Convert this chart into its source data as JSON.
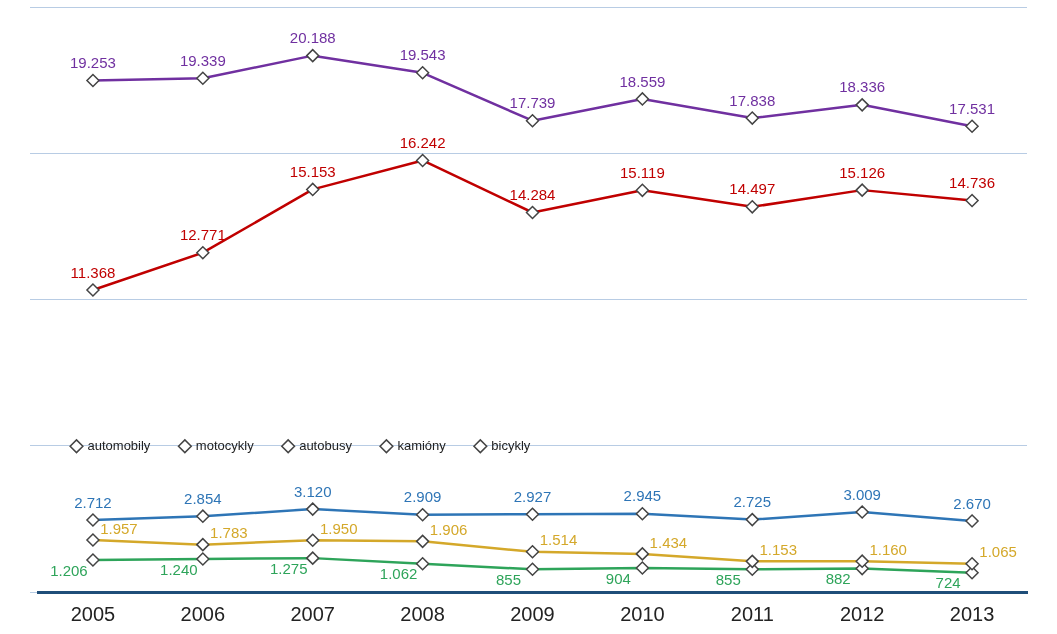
{
  "chart_data": {
    "type": "line",
    "categories": [
      "2005",
      "2006",
      "2007",
      "2008",
      "2009",
      "2010",
      "2011",
      "2012",
      "2013"
    ],
    "series": [
      {
        "name": "automobily",
        "color": "#7030a0",
        "values": [
          19253,
          19339,
          20188,
          19543,
          17739,
          18559,
          17838,
          18336,
          17531
        ],
        "value_labels": [
          "19.253",
          "19.339",
          "20.188",
          "19.543",
          "17.739",
          "18.559",
          "17.838",
          "18.336",
          "17.531"
        ]
      },
      {
        "name": "motocykly",
        "color": "#c00000",
        "values": [
          11368,
          12771,
          15153,
          16242,
          14284,
          15119,
          14497,
          15126,
          14736
        ],
        "value_labels": [
          "11.368",
          "12.771",
          "15.153",
          "16.242",
          "14.284",
          "15.119",
          "14.497",
          "15.126",
          "14.736"
        ]
      },
      {
        "name": "autobusy",
        "color": "#2e75b6",
        "values": [
          2712,
          2854,
          3120,
          2909,
          2927,
          2945,
          2725,
          3009,
          2670
        ],
        "value_labels": [
          "2.712",
          "2.854",
          "3.120",
          "2.909",
          "2.927",
          "2.945",
          "2.725",
          "3.009",
          "2.670"
        ]
      },
      {
        "name": "kamióny",
        "color": "#d4a82a",
        "values": [
          1957,
          1783,
          1950,
          1906,
          1514,
          1434,
          1153,
          1160,
          1065
        ],
        "value_labels": [
          "1.957",
          "1.783",
          "1.950",
          "1.906",
          "1.514",
          "1.434",
          "1.153",
          "1.160",
          "1.065"
        ]
      },
      {
        "name": "bicykly",
        "color": "#2ea45a",
        "values": [
          1206,
          1240,
          1275,
          1062,
          855,
          904,
          855,
          882,
          724
        ],
        "value_labels": [
          "1.206",
          "1.240",
          "1.275",
          "1.062",
          "855",
          "904",
          "855",
          "882",
          "724"
        ]
      }
    ],
    "ylim": [
      0,
      22000
    ],
    "yticks": [
      {
        "value": 0,
        "label": null
      },
      {
        "value": 5500,
        "label": null
      },
      {
        "value": 11000,
        "label": null
      },
      {
        "value": 16500,
        "label": null
      },
      {
        "value": 22000,
        "label": null
      }
    ],
    "tick_labels": "x",
    "grid": "y",
    "legend": "left",
    "marker": "diamond",
    "line_style": "solid"
  }
}
